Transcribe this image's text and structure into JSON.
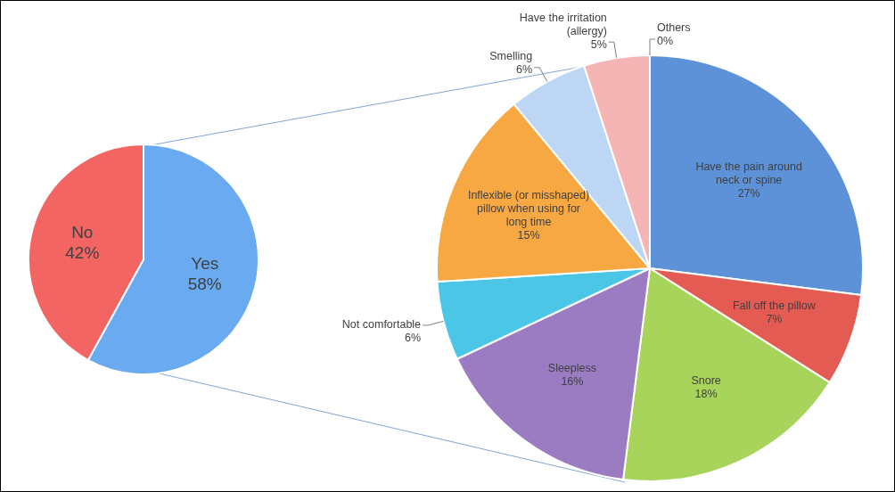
{
  "chart_data": [
    {
      "type": "pie",
      "categories": [
        "Yes",
        "No"
      ],
      "values": [
        58,
        42
      ],
      "colors": [
        "#6aaaf0",
        "#f26563"
      ],
      "value_labels": [
        "58%",
        "42%"
      ]
    },
    {
      "type": "pie",
      "categories": [
        "Have the pain around neck or spine",
        "Fall off the pillow",
        "Snore",
        "Sleepless",
        "Not comfortable",
        "Inflexible (or misshaped) pillow when using for long time",
        "Smelling",
        "Have the irritation (allergy)",
        "Others"
      ],
      "values": [
        27,
        7,
        18,
        16,
        6,
        15,
        6,
        5,
        0
      ],
      "colors": [
        "#5d92d8",
        "#e35b52",
        "#a9d45c",
        "#9b7cc2",
        "#4cc6e6",
        "#f7a843",
        "#bcd6f4",
        "#f5b5b4",
        "#c0c0c0"
      ],
      "value_labels": [
        "27%",
        "7%",
        "18%",
        "16%",
        "6%",
        "15%",
        "6%",
        "5%",
        "0%"
      ]
    }
  ]
}
